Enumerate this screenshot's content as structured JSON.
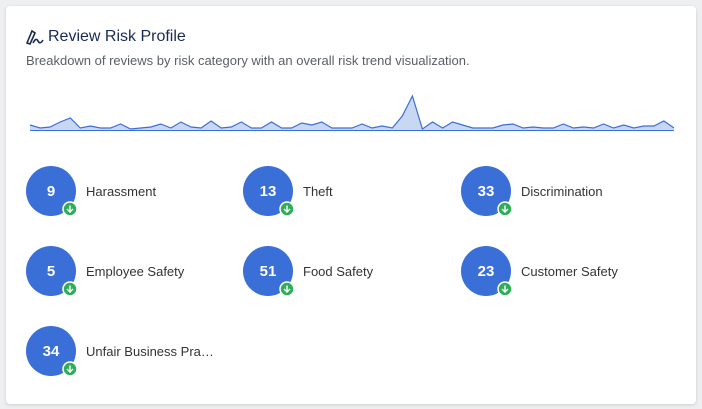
{
  "header": {
    "title": "Review Risk Profile",
    "subtitle": "Breakdown of reviews by risk category with an overall risk trend visualization."
  },
  "trend": {
    "type": "area",
    "values": [
      5,
      2,
      3,
      8,
      12,
      2,
      4,
      2,
      2,
      6,
      1,
      2,
      3,
      6,
      2,
      8,
      3,
      2,
      9,
      2,
      3,
      8,
      2,
      2,
      8,
      2,
      2,
      7,
      5,
      8,
      2,
      2,
      2,
      6,
      2,
      4,
      2,
      14,
      34,
      1,
      8,
      2,
      8,
      5,
      2,
      2,
      2,
      5,
      6,
      2,
      3,
      2,
      2,
      6,
      2,
      3,
      2,
      6,
      2,
      5,
      2,
      4,
      4,
      9,
      2
    ]
  },
  "risks": [
    {
      "count": 9,
      "label": "Harassment"
    },
    {
      "count": 13,
      "label": "Theft"
    },
    {
      "count": 33,
      "label": "Discrimination"
    },
    {
      "count": 5,
      "label": "Employee Safety"
    },
    {
      "count": 51,
      "label": "Food Safety"
    },
    {
      "count": 23,
      "label": "Customer Safety"
    },
    {
      "count": 34,
      "label": "Unfair Business Pra…"
    }
  ]
}
